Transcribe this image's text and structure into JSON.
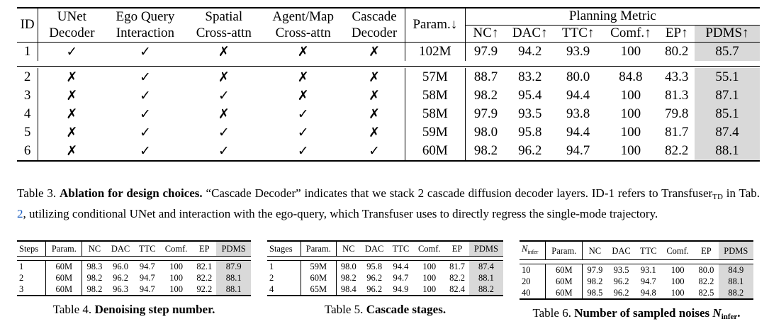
{
  "table3": {
    "headers": {
      "id": "ID",
      "unet": [
        "UNet",
        "Decoder"
      ],
      "ego": [
        "Ego Query",
        "Interaction"
      ],
      "spatial": [
        "Spatial",
        "Cross-attn"
      ],
      "agent": [
        "Agent/Map",
        "Cross-attn"
      ],
      "cascade": [
        "Cascade",
        "Decoder"
      ],
      "param": "Param.↓",
      "planning": "Planning Metric",
      "metrics": [
        "NC↑",
        "DAC↑",
        "TTC↑",
        "Comf.↑",
        "EP↑",
        "PDMS↑"
      ]
    },
    "rows": [
      {
        "id": "1",
        "unet": "✓",
        "ego": "✓",
        "spatial": "✗",
        "agent": "✗",
        "cascade": "✗",
        "param": "102M",
        "nc": "97.9",
        "dac": "94.2",
        "ttc": "93.9",
        "comf": "100",
        "ep": "80.2",
        "pdms": "85.7"
      },
      {
        "id": "2",
        "unet": "✗",
        "ego": "✓",
        "spatial": "✗",
        "agent": "✗",
        "cascade": "✗",
        "param": "57M",
        "nc": "88.7",
        "dac": "83.2",
        "ttc": "80.0",
        "comf": "84.8",
        "ep": "43.3",
        "pdms": "55.1"
      },
      {
        "id": "3",
        "unet": "✗",
        "ego": "✓",
        "spatial": "✓",
        "agent": "✗",
        "cascade": "✗",
        "param": "58M",
        "nc": "98.2",
        "dac": "95.4",
        "ttc": "94.4",
        "comf": "100",
        "ep": "81.3",
        "pdms": "87.1"
      },
      {
        "id": "4",
        "unet": "✗",
        "ego": "✓",
        "spatial": "✗",
        "agent": "✓",
        "cascade": "✗",
        "param": "58M",
        "nc": "97.9",
        "dac": "93.5",
        "ttc": "93.8",
        "comf": "100",
        "ep": "79.8",
        "pdms": "85.1"
      },
      {
        "id": "5",
        "unet": "✗",
        "ego": "✓",
        "spatial": "✓",
        "agent": "✓",
        "cascade": "✗",
        "param": "59M",
        "nc": "98.0",
        "dac": "95.8",
        "ttc": "94.4",
        "comf": "100",
        "ep": "81.7",
        "pdms": "87.4"
      },
      {
        "id": "6",
        "unet": "✗",
        "ego": "✓",
        "spatial": "✓",
        "agent": "✓",
        "cascade": "✓",
        "param": "60M",
        "nc": "98.2",
        "dac": "96.2",
        "ttc": "94.7",
        "comf": "100",
        "ep": "82.2",
        "pdms": "88.1"
      }
    ],
    "caption": {
      "label": "Table 3.",
      "title": "Ablation for design choices.",
      "text1": " “Cascade Decoder” indicates that we stack 2 cascade diffusion decoder layers. ID-1 refers to Transfuser",
      "sub": "TD",
      "text2": " in Tab. ",
      "ref": "2",
      "text3": ", utilizing conditional UNet and interaction with the ego-query, which Transfuser uses to directly regress the single-mode trajectory."
    }
  },
  "table4": {
    "headers": [
      "Steps",
      "Param.",
      "NC",
      "DAC",
      "TTC",
      "Comf.",
      "EP",
      "PDMS"
    ],
    "rows": [
      [
        "1",
        "60M",
        "98.3",
        "96.0",
        "94.7",
        "100",
        "82.1",
        "87.9"
      ],
      [
        "2",
        "60M",
        "98.2",
        "96.2",
        "94.7",
        "100",
        "82.2",
        "88.1"
      ],
      [
        "3",
        "60M",
        "98.2",
        "96.3",
        "94.7",
        "100",
        "92.2",
        "88.1"
      ]
    ],
    "caption": {
      "label": "Table 4. ",
      "title": "Denoising step number."
    }
  },
  "table5": {
    "headers": [
      "Stages",
      "Param.",
      "NC",
      "DAC",
      "TTC",
      "Comf.",
      "EP",
      "PDMS"
    ],
    "rows": [
      [
        "1",
        "59M",
        "98.0",
        "95.8",
        "94.4",
        "100",
        "81.7",
        "87.4"
      ],
      [
        "2",
        "60M",
        "98.2",
        "96.2",
        "94.7",
        "100",
        "82.2",
        "88.1"
      ],
      [
        "4",
        "65M",
        "98.4",
        "96.2",
        "94.9",
        "100",
        "82.4",
        "88.2"
      ]
    ],
    "caption": {
      "label": "Table 5. ",
      "title": "Cascade stages."
    }
  },
  "table6": {
    "headers": [
      "N",
      "Param.",
      "NC",
      "DAC",
      "TTC",
      "Comf.",
      "EP",
      "PDMS"
    ],
    "header_sub": "infer",
    "rows": [
      [
        "10",
        "60M",
        "97.9",
        "93.5",
        "93.1",
        "100",
        "80.0",
        "84.9"
      ],
      [
        "20",
        "60M",
        "98.2",
        "96.2",
        "94.7",
        "100",
        "82.2",
        "88.1"
      ],
      [
        "40",
        "60M",
        "98.5",
        "96.2",
        "94.8",
        "100",
        "82.5",
        "88.2"
      ]
    ],
    "caption": {
      "label": "Table 6. ",
      "title": "Number of sampled noises ",
      "sym": "N",
      "sym_sub": "infer",
      "end": "."
    }
  }
}
